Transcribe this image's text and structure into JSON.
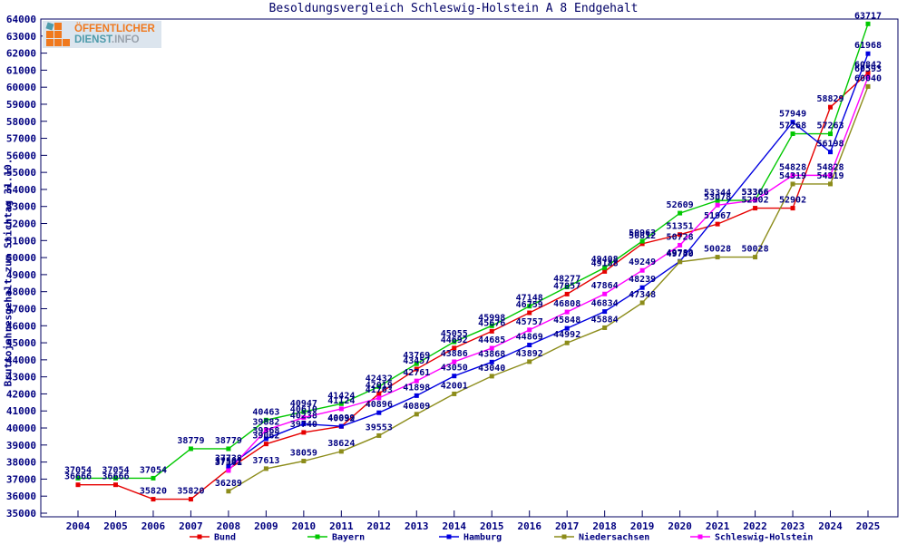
{
  "title": "Besoldungsvergleich Schleswig-Holstein A 8 Endgehalt",
  "ylabel": "Bruttojahresgehalt zum Stichtag 31.10.",
  "logo": {
    "line1": "ÖFFENTLICHER",
    "line2a": "DIENST",
    "line2b": ".INFO"
  },
  "colors": {
    "axis_text": "#000080",
    "border": "#000060",
    "background": "#ffffff"
  },
  "chart_data": {
    "type": "line",
    "title": "Besoldungsvergleich Schleswig-Holstein A 8 Endgehalt",
    "xlabel": "",
    "ylabel": "Bruttojahresgehalt zum Stichtag 31.10.",
    "x": [
      2004,
      2005,
      2006,
      2007,
      2008,
      2009,
      2010,
      2011,
      2012,
      2013,
      2014,
      2015,
      2016,
      2017,
      2018,
      2019,
      2020,
      2021,
      2022,
      2023,
      2024,
      2025
    ],
    "ylim": [
      35000,
      64000
    ],
    "ytick_step": 1000,
    "grid": false,
    "legend_position": "bottom",
    "point_labels": true,
    "series": [
      {
        "name": "Bund",
        "color": "#e60000",
        "values": [
          36666,
          36666,
          35820,
          35820,
          37581,
          39062,
          39740,
          40092,
          42019,
          43457,
          44692,
          45676,
          46759,
          47857,
          49188,
          50812,
          51351,
          51967,
          52902,
          52902,
          58829,
          60842
        ]
      },
      {
        "name": "Bayern",
        "color": "#00c800",
        "values": [
          37054,
          37054,
          37054,
          38779,
          38779,
          40463,
          40947,
          41424,
          42432,
          43769,
          45055,
          45998,
          47148,
          48277,
          49408,
          50963,
          52609,
          53344,
          53366,
          57268,
          57263,
          63717
        ]
      },
      {
        "name": "Hamburg",
        "color": "#0000e0",
        "values": [
          null,
          null,
          null,
          null,
          37738,
          39368,
          40238,
          40099,
          40896,
          41898,
          43050,
          43868,
          44869,
          45848,
          46834,
          48239,
          49782,
          null,
          null,
          57949,
          56198,
          61968
        ]
      },
      {
        "name": "Niedersachsen",
        "color": "#8c8c1a",
        "values": [
          null,
          null,
          null,
          null,
          36289,
          37613,
          38059,
          38624,
          39553,
          40809,
          42001,
          43040,
          43892,
          44992,
          45884,
          47348,
          49750,
          50028,
          50028,
          54319,
          54319,
          60040
        ]
      },
      {
        "name": "Schleswig-Holstein",
        "color": "#ff00ff",
        "values": [
          null,
          null,
          null,
          null,
          37501,
          39882,
          40610,
          41124,
          41763,
          42761,
          43886,
          44685,
          45757,
          46808,
          47864,
          49249,
          50728,
          53078,
          53366,
          54828,
          54828,
          60593
        ]
      }
    ]
  }
}
